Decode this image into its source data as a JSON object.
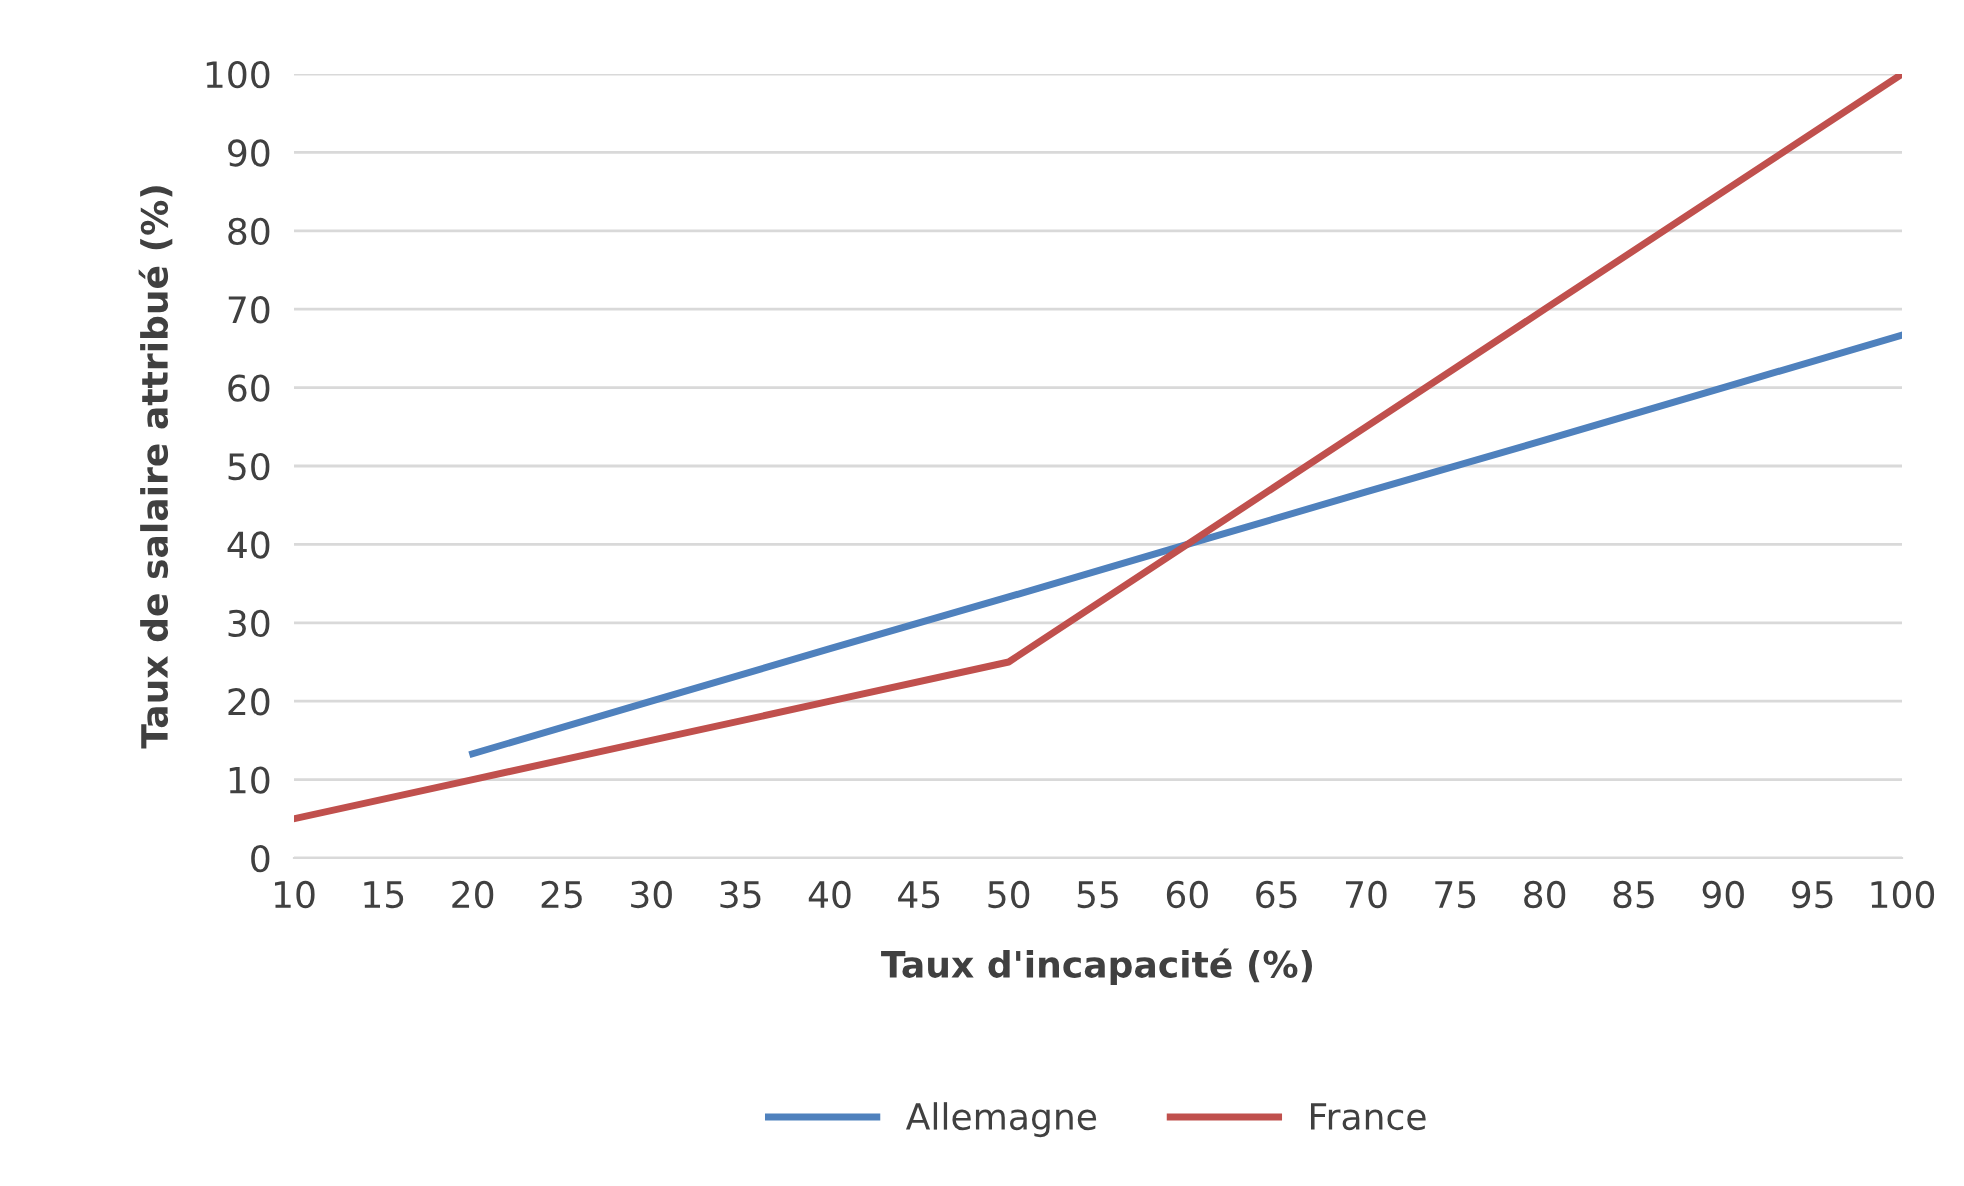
{
  "chart_data": {
    "type": "line",
    "xlabel": "Taux d'incapacité (%)",
    "ylabel": "Taux de salaire attribué (%)",
    "series": [
      {
        "name": "Allemagne",
        "color": "#4f81bd",
        "x": [
          20,
          30,
          40,
          50,
          60,
          70,
          80,
          90,
          100
        ],
        "values": [
          13.3,
          20,
          26.7,
          33.3,
          40,
          46.7,
          53.3,
          60,
          66.7
        ]
      },
      {
        "name": "France",
        "color": "#c0504d",
        "x": [
          10,
          20,
          30,
          40,
          50,
          60,
          70,
          80,
          90,
          100
        ],
        "values": [
          5,
          10,
          15,
          20,
          25,
          40,
          55,
          70,
          85,
          100
        ]
      }
    ],
    "xlim": [
      10,
      100
    ],
    "xticks": [
      10,
      15,
      20,
      25,
      30,
      35,
      40,
      45,
      50,
      55,
      60,
      65,
      70,
      75,
      80,
      85,
      90,
      95,
      100
    ],
    "ylim": [
      0,
      100
    ],
    "yticks": [
      0,
      10,
      20,
      30,
      40,
      50,
      60,
      70,
      80,
      90,
      100
    ],
    "grid": "y",
    "legend": "bottom",
    "marker": "none",
    "line_style": "solid"
  }
}
